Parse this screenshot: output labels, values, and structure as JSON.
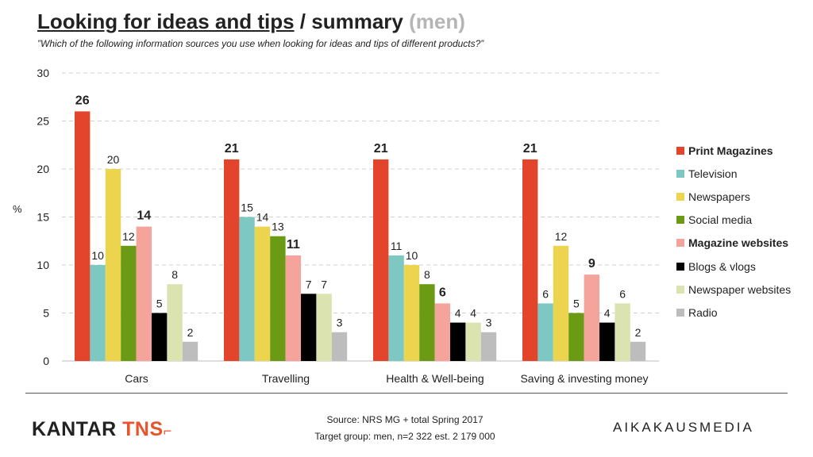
{
  "header": {
    "title_part1": "Looking for ideas and tips",
    "title_part2": " / summary ",
    "title_part3": "(men)",
    "subtitle": "”Which of the following information sources you use when looking for ideas and tips of different products?”"
  },
  "chart_data": {
    "type": "bar",
    "ylabel": "%",
    "ylim": [
      0,
      30
    ],
    "yticks": [
      0,
      5,
      10,
      15,
      20,
      25,
      30
    ],
    "grid": true,
    "categories": [
      "Cars",
      "Travelling",
      "Health & Well-being",
      "Saving & investing money"
    ],
    "series": [
      {
        "name": "Print Magazines",
        "color": "#e2452b",
        "values": [
          26,
          21,
          21,
          21
        ],
        "bold": true
      },
      {
        "name": "Television",
        "color": "#7ec8c3",
        "values": [
          10,
          15,
          11,
          6
        ],
        "bold": false
      },
      {
        "name": "Newspapers",
        "color": "#ecd44e",
        "values": [
          20,
          14,
          10,
          12
        ],
        "bold": false
      },
      {
        "name": "Social media",
        "color": "#6b9a14",
        "values": [
          12,
          13,
          8,
          5
        ],
        "bold": false
      },
      {
        "name": "Magazine websites",
        "color": "#f4a49a",
        "values": [
          14,
          11,
          6,
          9
        ],
        "bold": true
      },
      {
        "name": "Blogs & vlogs",
        "color": "#000000",
        "values": [
          5,
          7,
          4,
          4
        ],
        "bold": false
      },
      {
        "name": "Newspaper websites",
        "color": "#dbe3b0",
        "values": [
          8,
          7,
          4,
          6
        ],
        "bold": false
      },
      {
        "name": "Radio",
        "color": "#bdbdbd",
        "values": [
          2,
          3,
          3,
          2
        ],
        "bold": false
      }
    ]
  },
  "footer": {
    "brand_left_main": "KANTAR ",
    "brand_left_accent": "TNS",
    "source_line1": "Source: NRS MG + total Spring 2017",
    "source_line2": "Target group: men, n=2 322 est. 2 179 000",
    "brand_right": "AIKAKAUSMEDIA"
  }
}
